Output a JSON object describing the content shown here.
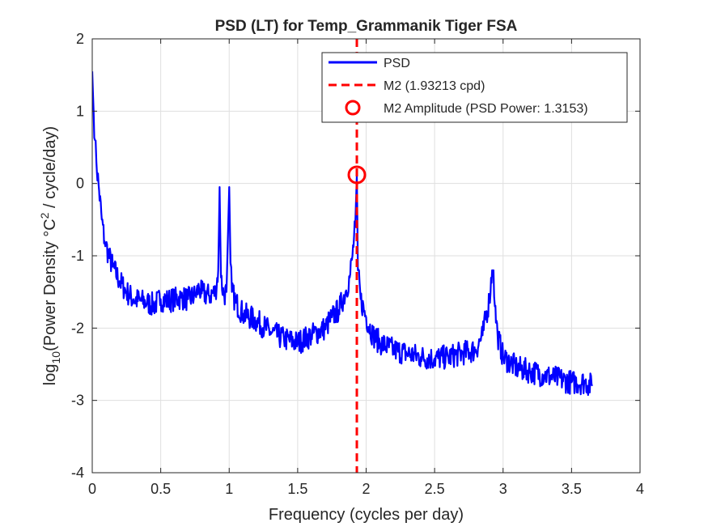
{
  "chart_data": {
    "type": "line",
    "title": "PSD (LT) for Temp_Grammanik Tiger FSA",
    "xlabel": "Frequency (cycles per day)",
    "ylabel_parts": {
      "prefix": "log",
      "subscript": "10",
      "middle": "(Power Density °C",
      "superscript": "2",
      "suffix": " / cycle/day)"
    },
    "xlim": [
      0,
      4
    ],
    "ylim": [
      -4,
      2
    ],
    "xticks": [
      0,
      0.5,
      1,
      1.5,
      2,
      2.5,
      3,
      3.5,
      4
    ],
    "xtick_labels": [
      "0",
      "0.5",
      "1",
      "1.5",
      "2",
      "2.5",
      "3",
      "3.5",
      "4"
    ],
    "yticks": [
      -4,
      -3,
      -2,
      -1,
      0,
      1,
      2
    ],
    "ytick_labels": [
      "-4",
      "-3",
      "-2",
      "-1",
      "0",
      "1",
      "2"
    ],
    "grid": true,
    "legend_placement": "top-right",
    "colors": {
      "psd": "#0000ff",
      "m2": "#ff0000",
      "axes": "#262626",
      "grid": "#dfdfdf"
    },
    "series": [
      {
        "name": "PSD",
        "style": "solid-line",
        "color": "#0000ff",
        "x": [
          0.0,
          0.01,
          0.02,
          0.03,
          0.05,
          0.07,
          0.09,
          0.1,
          0.12,
          0.15,
          0.2,
          0.25,
          0.3,
          0.35,
          0.4,
          0.45,
          0.5,
          0.55,
          0.6,
          0.65,
          0.7,
          0.75,
          0.78,
          0.8,
          0.85,
          0.9,
          0.92,
          0.93,
          0.94,
          0.96,
          0.98,
          1.0,
          1.01,
          1.02,
          1.05,
          1.1,
          1.2,
          1.3,
          1.4,
          1.5,
          1.6,
          1.7,
          1.75,
          1.8,
          1.85,
          1.88,
          1.9,
          1.92,
          1.932,
          1.94,
          1.96,
          2.0,
          2.05,
          2.1,
          2.2,
          2.3,
          2.4,
          2.5,
          2.6,
          2.7,
          2.8,
          2.85,
          2.9,
          2.92,
          2.93,
          2.94,
          2.96,
          3.0,
          3.1,
          3.2,
          3.3,
          3.4,
          3.5,
          3.6,
          3.65
        ],
        "values": [
          1.55,
          1.0,
          0.6,
          0.3,
          -0.1,
          -0.5,
          -0.8,
          -0.85,
          -1.0,
          -1.15,
          -1.35,
          -1.5,
          -1.6,
          -1.62,
          -1.65,
          -1.68,
          -1.6,
          -1.62,
          -1.6,
          -1.58,
          -1.6,
          -1.55,
          -1.45,
          -1.52,
          -1.55,
          -1.5,
          -1.2,
          -0.05,
          -1.3,
          -1.55,
          -1.5,
          -0.05,
          -1.1,
          -1.5,
          -1.65,
          -1.8,
          -1.9,
          -2.05,
          -2.15,
          -2.2,
          -2.1,
          -2.0,
          -1.85,
          -1.75,
          -1.5,
          -1.3,
          -1.0,
          -0.6,
          0.12,
          -1.2,
          -1.6,
          -1.85,
          -2.1,
          -2.2,
          -2.3,
          -2.35,
          -2.4,
          -2.42,
          -2.4,
          -2.35,
          -2.3,
          -2.1,
          -1.6,
          -1.2,
          -1.2,
          -1.7,
          -2.1,
          -2.4,
          -2.55,
          -2.6,
          -2.65,
          -2.7,
          -2.75,
          -2.75,
          -2.8
        ]
      },
      {
        "name": "M2 (1.93213 cpd)",
        "style": "dashed-vertical-line",
        "color": "#ff0000",
        "x": 1.93213
      },
      {
        "name": "M2 Amplitude (PSD Power: 1.3153)",
        "style": "circle-marker",
        "color": "#ff0000",
        "x": 1.93213,
        "y": 0.119
      }
    ]
  }
}
